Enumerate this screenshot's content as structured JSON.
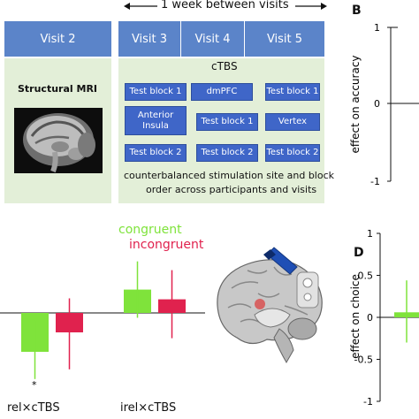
{
  "timeline_label": "1 week between visits",
  "visits": {
    "v2": {
      "title": "Visit 2",
      "body": "Structural MRI"
    },
    "v3": "Visit 3",
    "v4": "Visit 4",
    "v5": "Visit 5"
  },
  "ctbs_label": "cTBS",
  "blocks": {
    "v3": [
      "Test block 1",
      "Anterior Insula",
      "Test block 2"
    ],
    "v4": [
      "dmPFC",
      "Test block 1",
      "Test block 2"
    ],
    "v5": [
      "Test block 1",
      "Vertex",
      "Test block 2"
    ]
  },
  "counterbalance_text": [
    "counterbalanced stimulation site and block",
    "order across participants and visits"
  ],
  "panel_letters": {
    "b": "B",
    "d": "D"
  },
  "chart_b": {
    "ylabel": "effect on accuracy",
    "ticks": [
      "1",
      "0",
      "-1"
    ]
  },
  "chart_c": {
    "legend": [
      {
        "name": "congruent",
        "color": "#7fe33b"
      },
      {
        "name": "incongruent",
        "color": "#e0224e"
      }
    ],
    "categories": [
      "rel×cTBS",
      "irel×cTBS"
    ],
    "significance_marker": "*"
  },
  "chart_d": {
    "ylabel": "effect on choice",
    "ticks": [
      "1",
      "0.5",
      "0",
      "-0.5",
      "-1"
    ]
  },
  "chart_data": [
    {
      "type": "bar",
      "categories": [
        "rel×cTBS",
        "irel×cTBS"
      ],
      "series": [
        {
          "name": "congruent",
          "values": [
            -0.4,
            0.24
          ],
          "error": [
            [
              -0.68,
              -0.08
            ],
            [
              -0.05,
              0.53
            ]
          ]
        },
        {
          "name": "incongruent",
          "values": [
            -0.2,
            0.14
          ],
          "error": [
            [
              -0.58,
              0.15
            ],
            [
              -0.26,
              0.44
            ]
          ]
        }
      ],
      "ylim": [
        -1,
        1
      ]
    },
    {
      "type": "bar",
      "categories": [
        ""
      ],
      "values": [
        0.06
      ],
      "error": [
        [
          -0.3,
          0.44
        ]
      ],
      "ylabel": "effect on choice",
      "ylim": [
        -1,
        1
      ]
    }
  ],
  "colors": {
    "visit_header": "#5b84c9",
    "block": "#3f66c8",
    "panel_bg": "#e3efd8",
    "coil": "#1f4fb5",
    "target": "#f2e01a"
  }
}
